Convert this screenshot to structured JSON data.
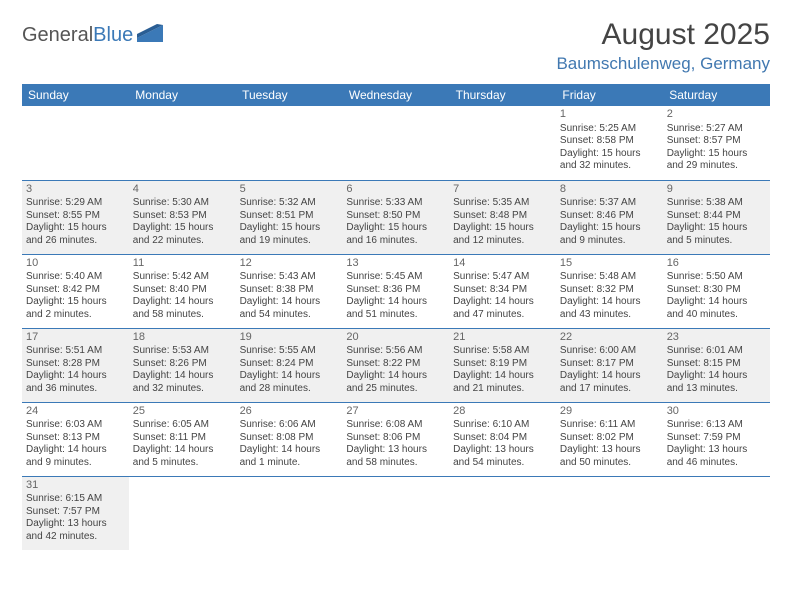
{
  "logo": {
    "part1": "General",
    "part2": "Blue"
  },
  "title": "August 2025",
  "location": "Baumschulenweg, Germany",
  "colors": {
    "header_bg": "#3b79b7",
    "header_text": "#ffffff",
    "accent": "#3b79b7",
    "body_text": "#444444",
    "alt_row": "#f0f0f0"
  },
  "daysOfWeek": [
    "Sunday",
    "Monday",
    "Tuesday",
    "Wednesday",
    "Thursday",
    "Friday",
    "Saturday"
  ],
  "weeks": [
    [
      null,
      null,
      null,
      null,
      null,
      {
        "n": "1",
        "sr": "Sunrise: 5:25 AM",
        "ss": "Sunset: 8:58 PM",
        "dl1": "Daylight: 15 hours",
        "dl2": "and 32 minutes."
      },
      {
        "n": "2",
        "sr": "Sunrise: 5:27 AM",
        "ss": "Sunset: 8:57 PM",
        "dl1": "Daylight: 15 hours",
        "dl2": "and 29 minutes."
      }
    ],
    [
      {
        "n": "3",
        "sr": "Sunrise: 5:29 AM",
        "ss": "Sunset: 8:55 PM",
        "dl1": "Daylight: 15 hours",
        "dl2": "and 26 minutes."
      },
      {
        "n": "4",
        "sr": "Sunrise: 5:30 AM",
        "ss": "Sunset: 8:53 PM",
        "dl1": "Daylight: 15 hours",
        "dl2": "and 22 minutes."
      },
      {
        "n": "5",
        "sr": "Sunrise: 5:32 AM",
        "ss": "Sunset: 8:51 PM",
        "dl1": "Daylight: 15 hours",
        "dl2": "and 19 minutes."
      },
      {
        "n": "6",
        "sr": "Sunrise: 5:33 AM",
        "ss": "Sunset: 8:50 PM",
        "dl1": "Daylight: 15 hours",
        "dl2": "and 16 minutes."
      },
      {
        "n": "7",
        "sr": "Sunrise: 5:35 AM",
        "ss": "Sunset: 8:48 PM",
        "dl1": "Daylight: 15 hours",
        "dl2": "and 12 minutes."
      },
      {
        "n": "8",
        "sr": "Sunrise: 5:37 AM",
        "ss": "Sunset: 8:46 PM",
        "dl1": "Daylight: 15 hours",
        "dl2": "and 9 minutes."
      },
      {
        "n": "9",
        "sr": "Sunrise: 5:38 AM",
        "ss": "Sunset: 8:44 PM",
        "dl1": "Daylight: 15 hours",
        "dl2": "and 5 minutes."
      }
    ],
    [
      {
        "n": "10",
        "sr": "Sunrise: 5:40 AM",
        "ss": "Sunset: 8:42 PM",
        "dl1": "Daylight: 15 hours",
        "dl2": "and 2 minutes."
      },
      {
        "n": "11",
        "sr": "Sunrise: 5:42 AM",
        "ss": "Sunset: 8:40 PM",
        "dl1": "Daylight: 14 hours",
        "dl2": "and 58 minutes."
      },
      {
        "n": "12",
        "sr": "Sunrise: 5:43 AM",
        "ss": "Sunset: 8:38 PM",
        "dl1": "Daylight: 14 hours",
        "dl2": "and 54 minutes."
      },
      {
        "n": "13",
        "sr": "Sunrise: 5:45 AM",
        "ss": "Sunset: 8:36 PM",
        "dl1": "Daylight: 14 hours",
        "dl2": "and 51 minutes."
      },
      {
        "n": "14",
        "sr": "Sunrise: 5:47 AM",
        "ss": "Sunset: 8:34 PM",
        "dl1": "Daylight: 14 hours",
        "dl2": "and 47 minutes."
      },
      {
        "n": "15",
        "sr": "Sunrise: 5:48 AM",
        "ss": "Sunset: 8:32 PM",
        "dl1": "Daylight: 14 hours",
        "dl2": "and 43 minutes."
      },
      {
        "n": "16",
        "sr": "Sunrise: 5:50 AM",
        "ss": "Sunset: 8:30 PM",
        "dl1": "Daylight: 14 hours",
        "dl2": "and 40 minutes."
      }
    ],
    [
      {
        "n": "17",
        "sr": "Sunrise: 5:51 AM",
        "ss": "Sunset: 8:28 PM",
        "dl1": "Daylight: 14 hours",
        "dl2": "and 36 minutes."
      },
      {
        "n": "18",
        "sr": "Sunrise: 5:53 AM",
        "ss": "Sunset: 8:26 PM",
        "dl1": "Daylight: 14 hours",
        "dl2": "and 32 minutes."
      },
      {
        "n": "19",
        "sr": "Sunrise: 5:55 AM",
        "ss": "Sunset: 8:24 PM",
        "dl1": "Daylight: 14 hours",
        "dl2": "and 28 minutes."
      },
      {
        "n": "20",
        "sr": "Sunrise: 5:56 AM",
        "ss": "Sunset: 8:22 PM",
        "dl1": "Daylight: 14 hours",
        "dl2": "and 25 minutes."
      },
      {
        "n": "21",
        "sr": "Sunrise: 5:58 AM",
        "ss": "Sunset: 8:19 PM",
        "dl1": "Daylight: 14 hours",
        "dl2": "and 21 minutes."
      },
      {
        "n": "22",
        "sr": "Sunrise: 6:00 AM",
        "ss": "Sunset: 8:17 PM",
        "dl1": "Daylight: 14 hours",
        "dl2": "and 17 minutes."
      },
      {
        "n": "23",
        "sr": "Sunrise: 6:01 AM",
        "ss": "Sunset: 8:15 PM",
        "dl1": "Daylight: 14 hours",
        "dl2": "and 13 minutes."
      }
    ],
    [
      {
        "n": "24",
        "sr": "Sunrise: 6:03 AM",
        "ss": "Sunset: 8:13 PM",
        "dl1": "Daylight: 14 hours",
        "dl2": "and 9 minutes."
      },
      {
        "n": "25",
        "sr": "Sunrise: 6:05 AM",
        "ss": "Sunset: 8:11 PM",
        "dl1": "Daylight: 14 hours",
        "dl2": "and 5 minutes."
      },
      {
        "n": "26",
        "sr": "Sunrise: 6:06 AM",
        "ss": "Sunset: 8:08 PM",
        "dl1": "Daylight: 14 hours",
        "dl2": "and 1 minute."
      },
      {
        "n": "27",
        "sr": "Sunrise: 6:08 AM",
        "ss": "Sunset: 8:06 PM",
        "dl1": "Daylight: 13 hours",
        "dl2": "and 58 minutes."
      },
      {
        "n": "28",
        "sr": "Sunrise: 6:10 AM",
        "ss": "Sunset: 8:04 PM",
        "dl1": "Daylight: 13 hours",
        "dl2": "and 54 minutes."
      },
      {
        "n": "29",
        "sr": "Sunrise: 6:11 AM",
        "ss": "Sunset: 8:02 PM",
        "dl1": "Daylight: 13 hours",
        "dl2": "and 50 minutes."
      },
      {
        "n": "30",
        "sr": "Sunrise: 6:13 AM",
        "ss": "Sunset: 7:59 PM",
        "dl1": "Daylight: 13 hours",
        "dl2": "and 46 minutes."
      }
    ],
    [
      {
        "n": "31",
        "sr": "Sunrise: 6:15 AM",
        "ss": "Sunset: 7:57 PM",
        "dl1": "Daylight: 13 hours",
        "dl2": "and 42 minutes."
      },
      null,
      null,
      null,
      null,
      null,
      null
    ]
  ]
}
